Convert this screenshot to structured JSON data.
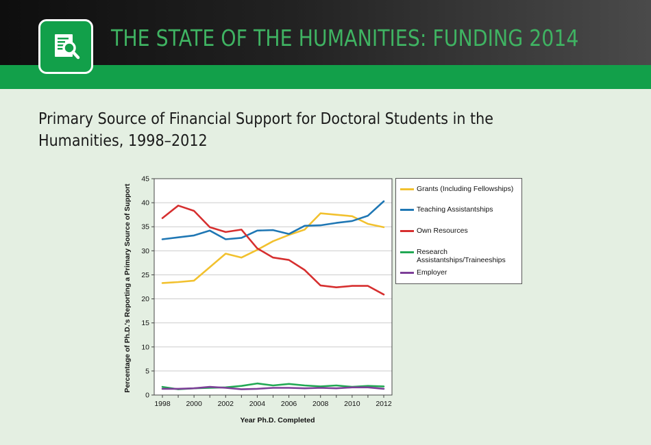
{
  "header": {
    "app_title": "THE STATE OF THE HUMANITIES: FUNDING 2014",
    "logo_icon": "document-magnifier-icon",
    "colors": {
      "brand_green": "#12a04a",
      "title_green": "#3fb362",
      "background": "#e4efe2"
    }
  },
  "chart_data": {
    "type": "line",
    "title": "Primary Source of Financial Support for Doctoral Students in the Humanities, 1998–2012",
    "xlabel": "Year Ph.D. Completed",
    "ylabel": "Percentage of Ph.D.'s Reporting a Primary Source of Support",
    "xlim": [
      1998,
      2012
    ],
    "ylim": [
      0,
      45
    ],
    "x_ticks": [
      1998,
      2000,
      2002,
      2004,
      2006,
      2008,
      2010,
      2012
    ],
    "y_ticks": [
      0,
      5,
      10,
      15,
      20,
      25,
      30,
      35,
      40,
      45
    ],
    "grid": "horizontal",
    "legend_position": "right",
    "x": [
      1998,
      1999,
      2000,
      2001,
      2002,
      2003,
      2004,
      2005,
      2006,
      2007,
      2008,
      2009,
      2010,
      2011,
      2012
    ],
    "series": [
      {
        "name": "Grants (Including Fellowships)",
        "color": "#f2c12e",
        "values": [
          23.3,
          23.5,
          23.8,
          26.6,
          29.4,
          28.6,
          30.2,
          32.0,
          33.3,
          34.4,
          37.8,
          37.5,
          37.2,
          35.6,
          34.9
        ]
      },
      {
        "name": "Teaching Assistantships",
        "color": "#1f77b4",
        "values": [
          32.4,
          32.8,
          33.2,
          34.2,
          32.4,
          32.7,
          34.2,
          34.3,
          33.5,
          35.2,
          35.3,
          35.8,
          36.2,
          37.3,
          40.3
        ]
      },
      {
        "name": "Own Resources",
        "color": "#d62f2f",
        "values": [
          36.8,
          39.4,
          38.3,
          34.9,
          33.9,
          34.4,
          30.5,
          28.6,
          28.1,
          26.0,
          22.8,
          22.4,
          22.7,
          22.7,
          20.9
        ]
      },
      {
        "name": "Research Assistantships/Traineeships",
        "color": "#22a854",
        "values": [
          1.7,
          1.2,
          1.4,
          1.5,
          1.6,
          1.9,
          2.4,
          2.0,
          2.3,
          2.0,
          1.8,
          2.0,
          1.7,
          1.9,
          1.8
        ]
      },
      {
        "name": "Employer",
        "color": "#7d3f98",
        "values": [
          1.3,
          1.3,
          1.4,
          1.7,
          1.5,
          1.2,
          1.3,
          1.5,
          1.5,
          1.4,
          1.5,
          1.4,
          1.6,
          1.6,
          1.3
        ]
      }
    ]
  }
}
